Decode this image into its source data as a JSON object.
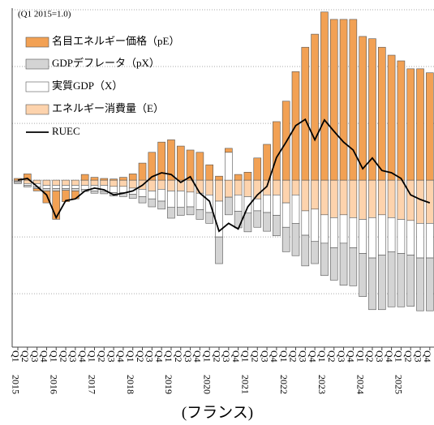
{
  "chart_data": {
    "type": "bar",
    "stacked": true,
    "annotation": "(Q1 2015=1.0)",
    "xlabel": "(フランス)",
    "categories": [
      "Q1",
      "Q2",
      "Q3",
      "Q4",
      "Q1",
      "Q2",
      "Q3",
      "Q4",
      "Q1",
      "Q2",
      "Q3",
      "Q4",
      "Q1",
      "Q2",
      "Q3",
      "Q4",
      "Q1",
      "Q2",
      "Q3",
      "Q4",
      "Q1",
      "Q2",
      "Q3",
      "Q4",
      "Q1",
      "Q2",
      "Q3",
      "Q4",
      "Q1",
      "Q2",
      "Q3",
      "Q4",
      "Q1",
      "Q2",
      "Q3",
      "Q4",
      "Q1",
      "Q2",
      "Q3",
      "Q4",
      "Q1",
      "Q2",
      "Q3",
      "Q4"
    ],
    "years": [
      "2015",
      "2016",
      "2017",
      "2018",
      "2019",
      "2020",
      "2021",
      "2022",
      "2023",
      "2024",
      "2025"
    ],
    "series": [
      {
        "name": "名目エネルギー価格（pE）",
        "type": "bar",
        "color": "#f2a154",
        "values": [
          0.003,
          0.011,
          -0.004,
          -0.021,
          -0.05,
          -0.02,
          -0.014,
          0.01,
          0.005,
          0.003,
          0.002,
          0.005,
          0.011,
          0.03,
          0.049,
          0.067,
          0.071,
          0.06,
          0.053,
          0.049,
          0.027,
          0.007,
          0.007,
          0.01,
          0.014,
          0.039,
          0.063,
          0.103,
          0.139,
          0.191,
          0.234,
          0.257,
          0.296,
          0.283,
          0.283,
          0.283,
          0.253,
          0.249,
          0.234,
          0.22,
          0.21,
          0.196,
          0.196,
          0.189
        ]
      },
      {
        "name": "GDPデフレータ（pX）",
        "type": "bar",
        "color": "#d4d4d4",
        "values": [
          -0.002,
          -0.003,
          -0.003,
          -0.004,
          -0.004,
          -0.003,
          -0.004,
          -0.004,
          -0.004,
          -0.004,
          -0.006,
          -0.007,
          -0.007,
          -0.011,
          -0.014,
          -0.014,
          -0.019,
          -0.014,
          -0.014,
          -0.017,
          -0.019,
          -0.047,
          -0.031,
          -0.029,
          -0.033,
          -0.029,
          -0.033,
          -0.036,
          -0.043,
          -0.057,
          -0.054,
          -0.039,
          -0.057,
          -0.057,
          -0.074,
          -0.067,
          -0.076,
          -0.091,
          -0.096,
          -0.097,
          -0.094,
          -0.09,
          -0.093,
          -0.093
        ]
      },
      {
        "name": "実質GDP（X）",
        "type": "bar",
        "color": "#ffffff",
        "values": [
          -0.002,
          -0.003,
          -0.006,
          -0.006,
          -0.006,
          -0.006,
          -0.006,
          -0.007,
          -0.01,
          -0.011,
          -0.011,
          -0.011,
          -0.011,
          -0.013,
          -0.014,
          -0.021,
          -0.029,
          -0.029,
          -0.026,
          -0.029,
          -0.031,
          -0.063,
          0.049,
          -0.029,
          -0.029,
          -0.021,
          -0.031,
          -0.036,
          -0.043,
          -0.05,
          -0.043,
          -0.057,
          -0.05,
          -0.053,
          -0.05,
          -0.053,
          -0.06,
          -0.071,
          -0.071,
          -0.06,
          -0.06,
          -0.061,
          -0.061,
          -0.061
        ]
      },
      {
        "name": "エネルギー消費量（E）",
        "type": "bar",
        "color": "#fdd3ad",
        "values": [
          -0.002,
          -0.006,
          -0.006,
          -0.009,
          -0.009,
          -0.009,
          -0.009,
          -0.009,
          -0.009,
          -0.009,
          -0.011,
          -0.011,
          -0.014,
          -0.016,
          -0.019,
          -0.016,
          -0.019,
          -0.019,
          -0.021,
          -0.023,
          -0.026,
          -0.037,
          -0.03,
          -0.026,
          -0.029,
          -0.033,
          -0.026,
          -0.026,
          -0.04,
          -0.026,
          -0.054,
          -0.051,
          -0.061,
          -0.066,
          -0.061,
          -0.066,
          -0.069,
          -0.066,
          -0.061,
          -0.066,
          -0.069,
          -0.071,
          -0.076,
          -0.076
        ]
      },
      {
        "name": "RUEC",
        "type": "line",
        "color": "#000000",
        "values": [
          0,
          0.003,
          -0.011,
          -0.026,
          -0.066,
          -0.036,
          -0.033,
          -0.019,
          -0.014,
          -0.017,
          -0.026,
          -0.023,
          -0.019,
          -0.009,
          0.006,
          0.013,
          0.01,
          -0.004,
          0.006,
          -0.023,
          -0.037,
          -0.09,
          -0.076,
          -0.086,
          -0.047,
          -0.026,
          -0.011,
          0.04,
          0.067,
          0.096,
          0.107,
          0.071,
          0.106,
          0.086,
          0.067,
          0.053,
          0.02,
          0.039,
          0.017,
          0.013,
          0.003,
          -0.026,
          -0.034,
          -0.04
        ]
      }
    ],
    "ylim": [
      -0.294,
      0.3
    ],
    "yticks": [
      -0.2,
      -0.1,
      0,
      0.1,
      0.2,
      0.3
    ],
    "grid": true,
    "legend": "upper left"
  }
}
